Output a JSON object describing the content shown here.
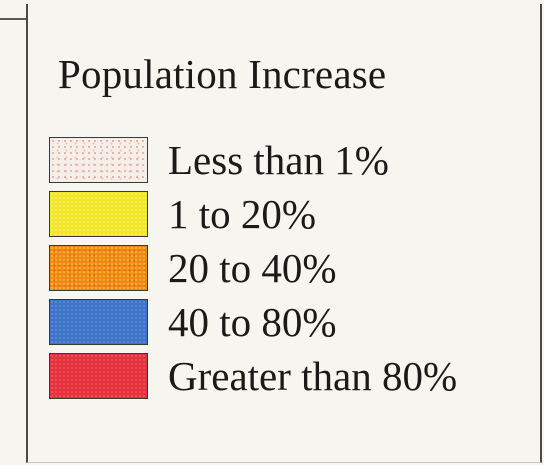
{
  "legend": {
    "title": "Population Increase",
    "items": [
      {
        "label": "Less than 1%",
        "color": "#f6efe9"
      },
      {
        "label": "1 to 20%",
        "color": "#f2e62a"
      },
      {
        "label": "20 to 40%",
        "color": "#ee8a1c"
      },
      {
        "label": "40 to 80%",
        "color": "#3d74c6"
      },
      {
        "label": "Greater than 80%",
        "color": "#e5323f"
      }
    ]
  }
}
